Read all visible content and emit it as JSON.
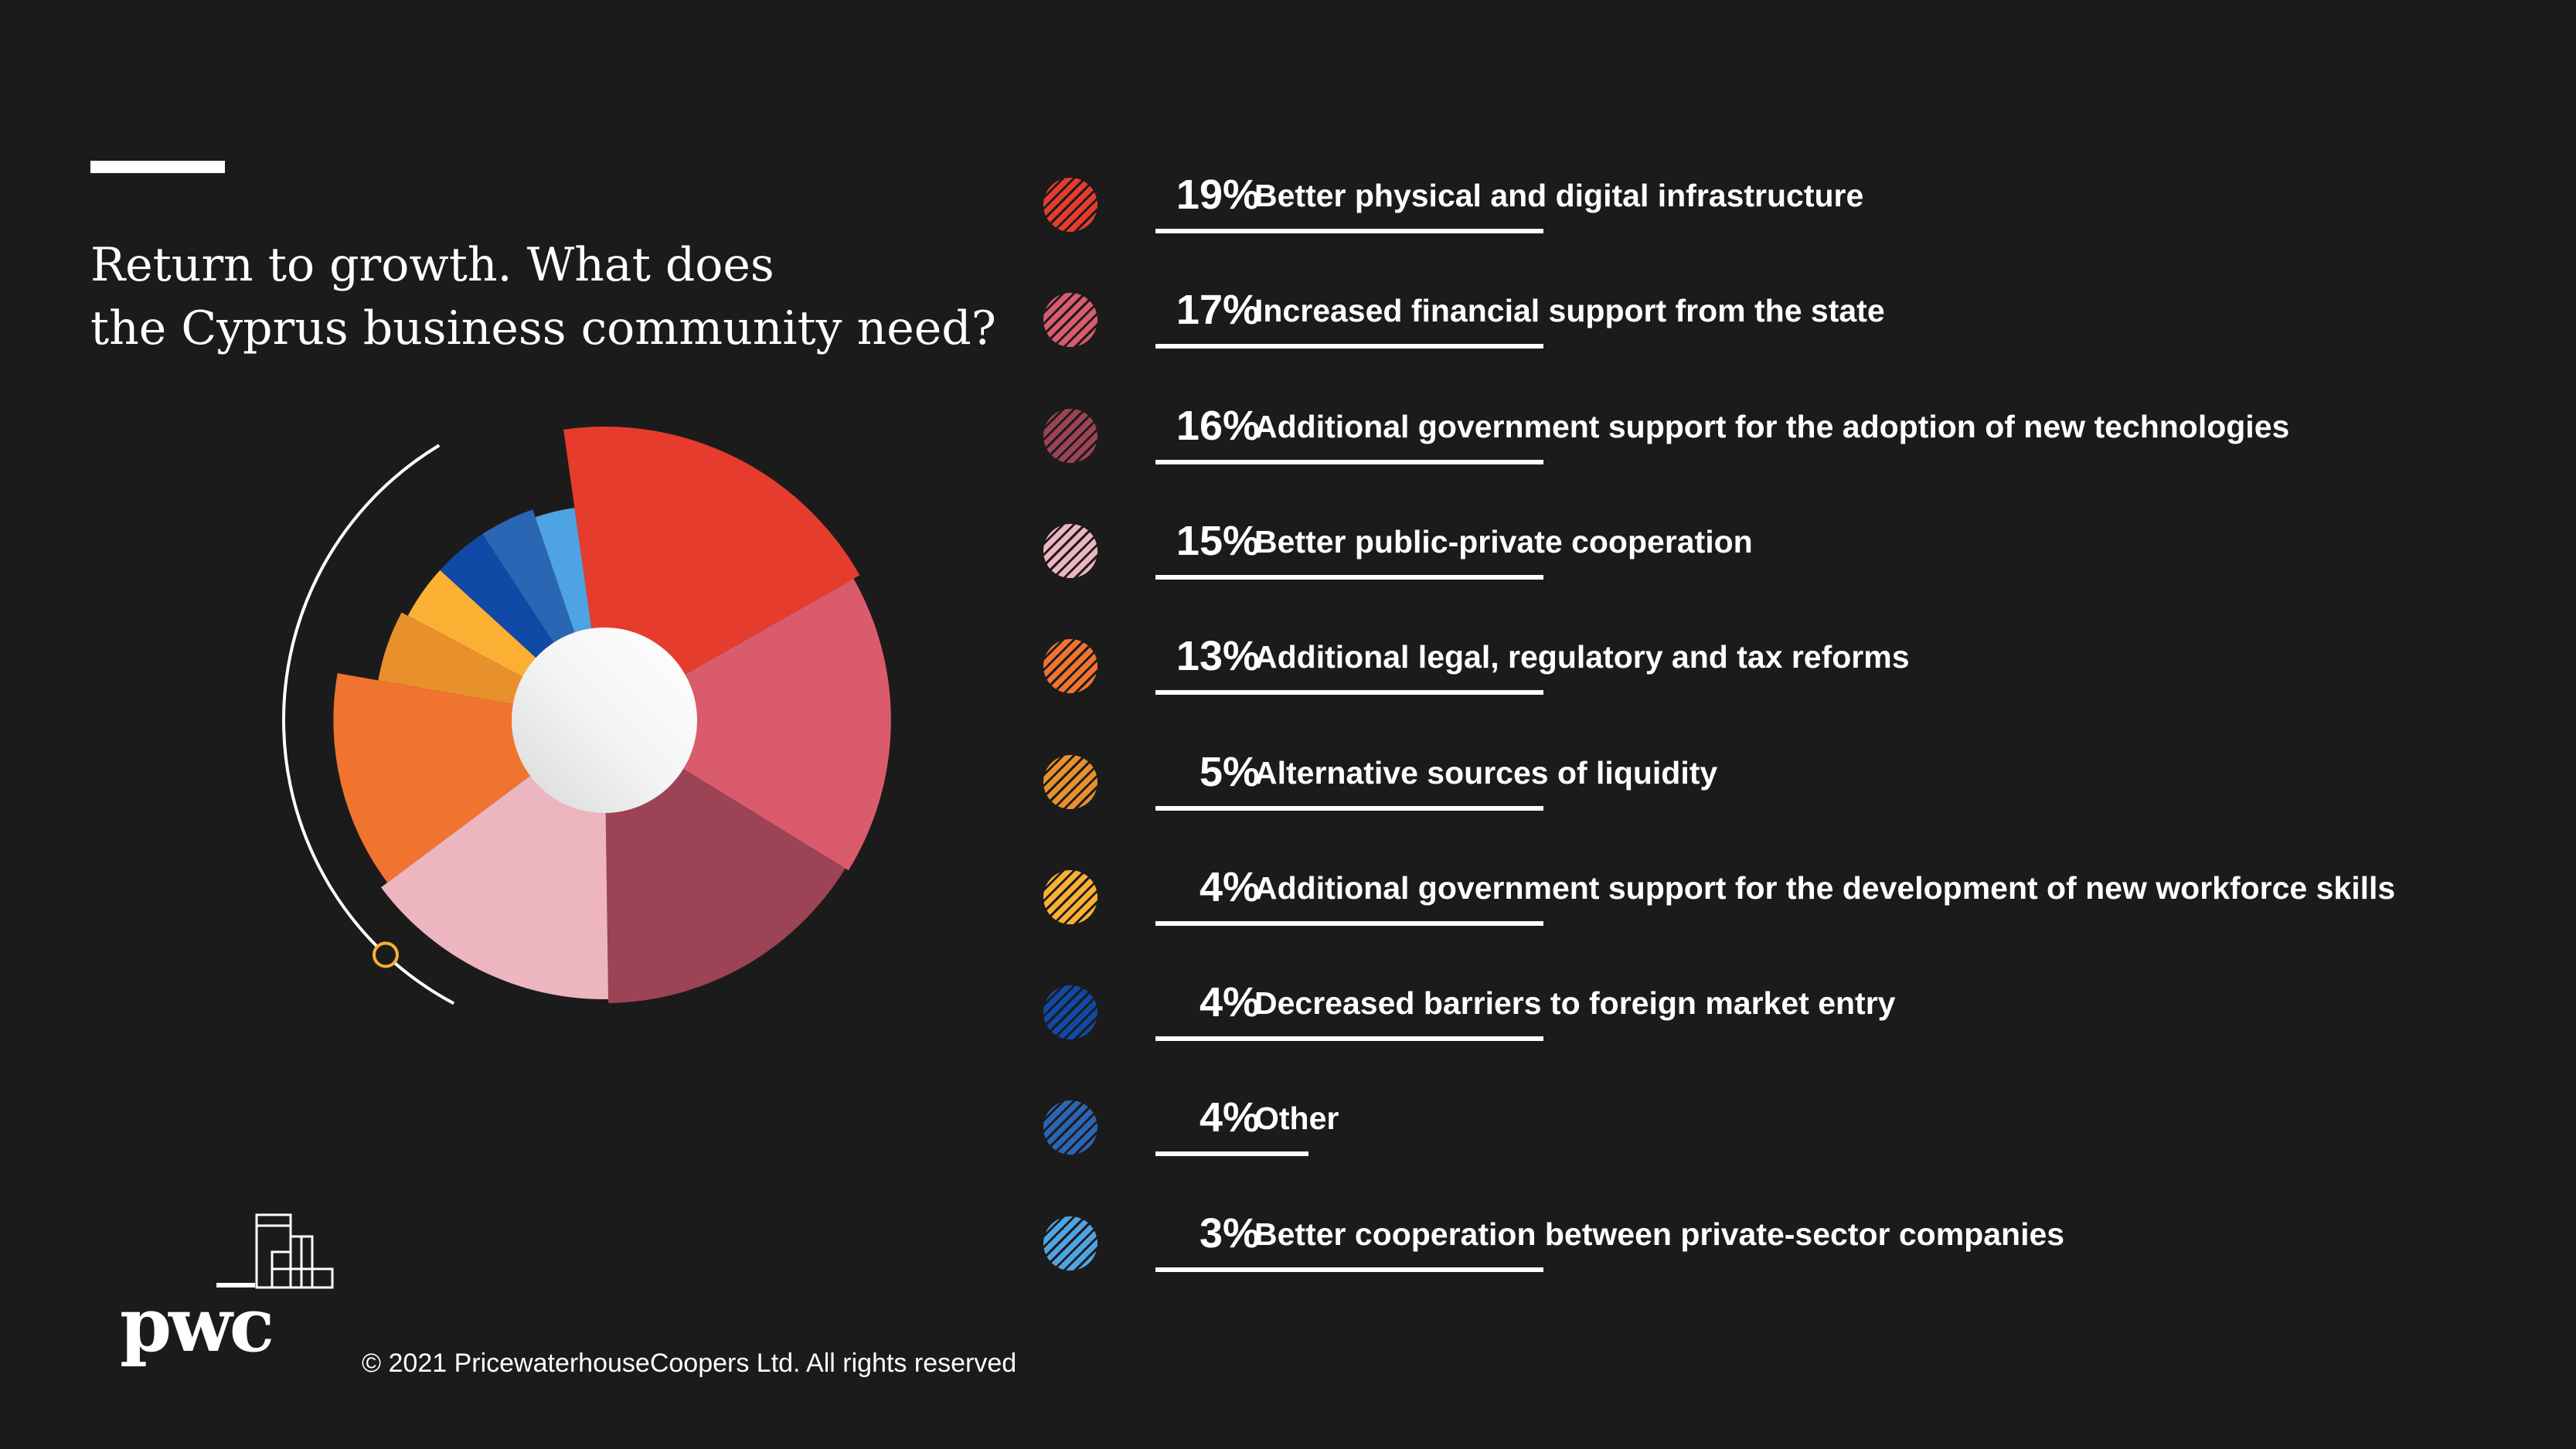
{
  "header": {
    "title_line1": "Return to growth. What does",
    "title_line2": "the Cyprus business community need?"
  },
  "chart_data": {
    "type": "pie",
    "title": "Return to growth. What does the Cyprus business community need?",
    "categories": [
      "Better physical and digital infrastructure",
      "Increased financial support from the state",
      "Additional government support for the adoption of new technologies",
      "Better public-private cooperation",
      "Additional legal, regulatory and tax reforms",
      "Alternative sources of liquidity",
      "Additional government support for the development of new workforce skills",
      "Decreased barriers to foreign market entry",
      "Other",
      "Better cooperation between private-sector companies"
    ],
    "values": [
      19,
      17,
      16,
      15,
      13,
      5,
      4,
      4,
      4,
      3
    ],
    "value_labels": [
      "19%",
      "17%",
      "16%",
      "15%",
      "13%",
      "5%",
      "4%",
      "4%",
      "4%",
      "3%"
    ],
    "colors": [
      "#e63c2d",
      "#d95b6c",
      "#9c4356",
      "#edb5c0",
      "#f0732f",
      "#e8902c",
      "#fbb034",
      "#1049a6",
      "#2b66b4",
      "#4ea3e3"
    ],
    "legend_position": "right"
  },
  "footer": {
    "logo_text": "pwc",
    "copyright": "© 2021 PricewaterhouseCoopers Ltd. All rights reserved"
  }
}
